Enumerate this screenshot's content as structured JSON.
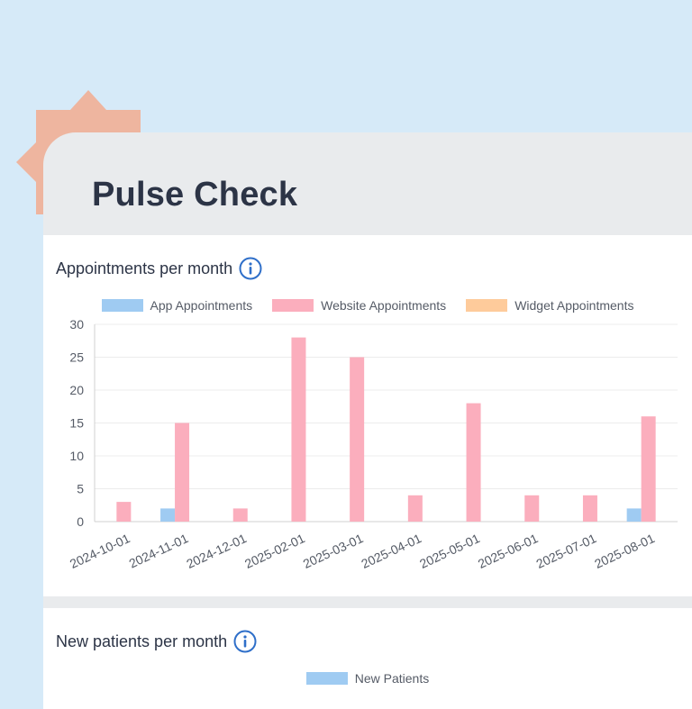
{
  "header": {
    "title": "Pulse Check"
  },
  "appointments": {
    "title": "Appointments per month",
    "info_icon": "info-icon",
    "chart_data": {
      "type": "bar",
      "categories": [
        "2024-10-01",
        "2024-11-01",
        "2024-12-01",
        "2025-02-01",
        "2025-03-01",
        "2025-04-01",
        "2025-05-01",
        "2025-06-01",
        "2025-07-01",
        "2025-08-01"
      ],
      "series": [
        {
          "name": "App Appointments",
          "color": "#9fcbf2",
          "values": [
            0,
            2,
            0,
            0,
            0,
            0,
            0,
            0,
            0,
            2
          ]
        },
        {
          "name": "Website Appointments",
          "color": "#fbaebd",
          "values": [
            3,
            15,
            2,
            28,
            25,
            4,
            18,
            4,
            4,
            16
          ]
        },
        {
          "name": "Widget Appointments",
          "color": "#fecb9b",
          "values": [
            0,
            0,
            0,
            0,
            0,
            0,
            0,
            0,
            0,
            0
          ]
        }
      ],
      "yticks": [
        "0",
        "5",
        "10",
        "15",
        "20",
        "25",
        "30"
      ],
      "ylim": [
        0,
        30
      ],
      "title": "Appointments per month",
      "xlabel": "",
      "ylabel": "",
      "legend": "top"
    }
  },
  "new_patients": {
    "title": "New patients per month",
    "info_icon": "info-icon",
    "legend": [
      {
        "name": "New Patients",
        "color": "#9fcbf2"
      }
    ]
  },
  "colors": {
    "background": "#d6eaf8",
    "burst": "#eeb59f",
    "accent_info": "#2f6fc9"
  }
}
